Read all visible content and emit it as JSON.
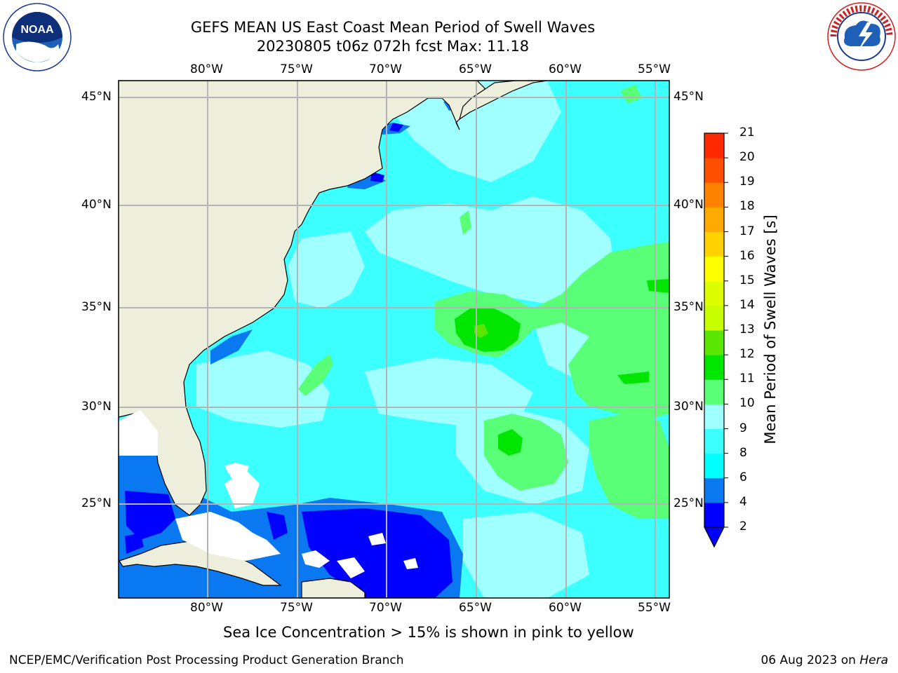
{
  "title_line1": "GEFS MEAN US East Coast Mean Period of Swell Waves",
  "title_line2": "20230805 t06z 072h fcst   Max: 11.18",
  "lon_labels": [
    "80°W",
    "75°W",
    "70°W",
    "65°W",
    "60°W",
    "55°W"
  ],
  "lat_labels": [
    "45°N",
    "40°N",
    "35°N",
    "30°N",
    "25°N"
  ],
  "colorbar": {
    "label": "Mean Period of Swell Waves [s]",
    "ticks": [
      "2",
      "4",
      "6",
      "8",
      "9",
      "10",
      "11",
      "12",
      "13",
      "14",
      "15",
      "16",
      "17",
      "18",
      "19",
      "20",
      "21"
    ],
    "colors": [
      "#0000ff",
      "#0a78f0",
      "#00ffff",
      "#3cffff",
      "#a0ffff",
      "#5aff78",
      "#00e600",
      "#5ae600",
      "#c8ff00",
      "#dcff00",
      "#ffff00",
      "#ffd200",
      "#ffaa00",
      "#ff8200",
      "#ff5000",
      "#ff2800",
      "#ff0000"
    ]
  },
  "footnote": "Sea Ice Concentration > 15% is shown in pink to yellow",
  "credit_left": "NCEP/EMC/Verification Post Processing Product Generation Branch",
  "credit_right_date": "06 Aug 2023 on",
  "credit_right_host": "Hera",
  "logos": {
    "left": "NOAA",
    "right_ring": "NATIONAL WEATHER SERVICE"
  },
  "colors": {
    "land": "#eeeedc",
    "grid": "#b4b4b4",
    "ocean_base": "#3cffff"
  }
}
